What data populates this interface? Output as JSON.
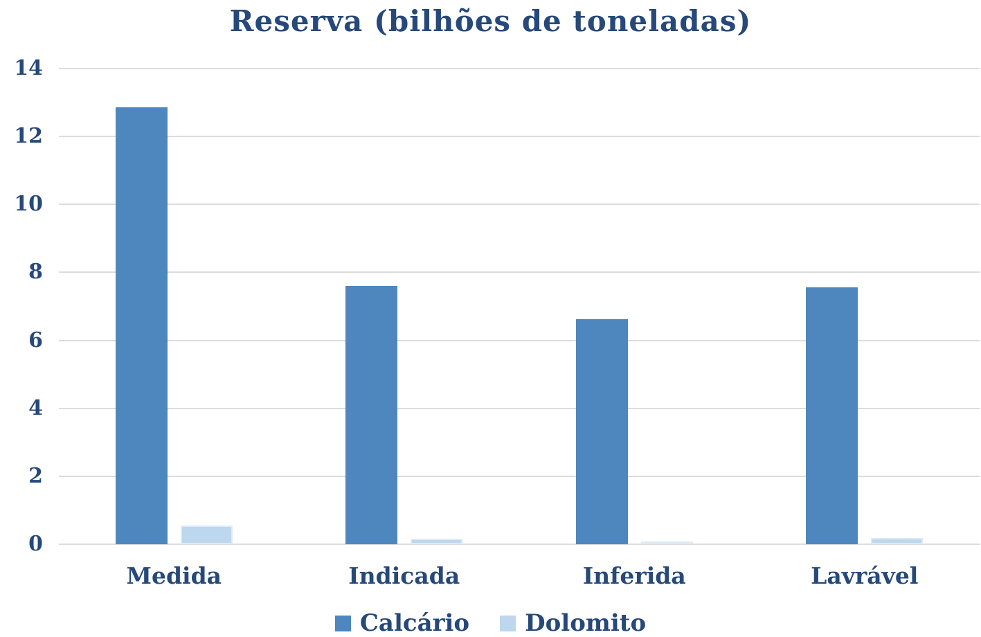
{
  "chart_data": {
    "type": "bar",
    "title": "Reserva (bilhões de toneladas)",
    "categories": [
      "Medida",
      "Indicada",
      "Inferida",
      "Lavrável"
    ],
    "series": [
      {
        "name": "Calcário",
        "color": "#4e87bd",
        "border_color": "#4e87bd",
        "values": [
          12.85,
          7.61,
          6.63,
          7.57
        ]
      },
      {
        "name": "Dolomito",
        "color": "#bdd7ee",
        "border_color": "#deeaf6",
        "values": [
          0.56,
          0.17,
          0.09,
          0.18
        ]
      }
    ],
    "xlabel": "",
    "ylabel": "",
    "ylim": [
      0,
      14
    ],
    "ytick_step": 2,
    "ytick_labels": [
      "0",
      "2",
      "4",
      "6",
      "8",
      "10",
      "12",
      "14"
    ],
    "grid": true,
    "gridline_color": "#dcdcdc",
    "legend_position": "bottom",
    "text_color": "#26497a",
    "background_color": "#ffffff"
  }
}
